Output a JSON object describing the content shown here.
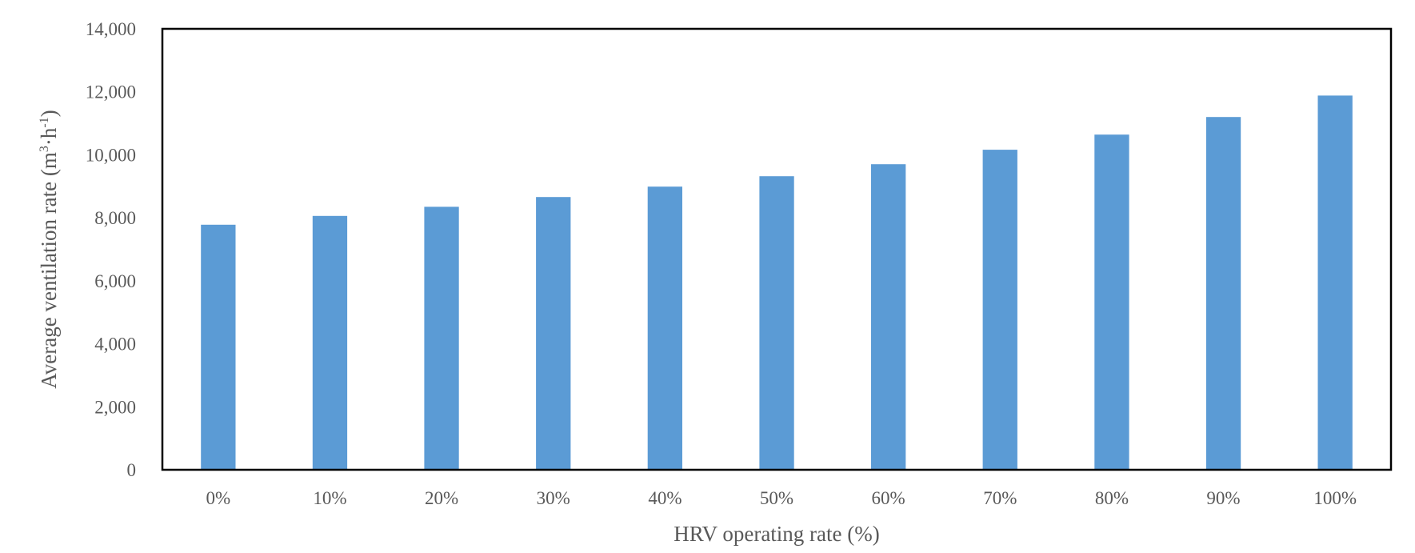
{
  "chart_data": {
    "type": "bar",
    "title": "",
    "xlabel": "HRV operating rate (%)",
    "ylabel": {
      "base": "Average  ventilation rate (m",
      "sup1": "3",
      "mid": "·h",
      "sup2": "-1",
      "end": ")"
    },
    "categories": [
      "0%",
      "10%",
      "20%",
      "30%",
      "40%",
      "50%",
      "60%",
      "70%",
      "80%",
      "90%",
      "100%"
    ],
    "values": [
      7780,
      8060,
      8350,
      8660,
      8990,
      9320,
      9700,
      10160,
      10640,
      11200,
      11880
    ],
    "ylim": [
      0,
      14000
    ],
    "yticks": [
      "0",
      "2,000",
      "4,000",
      "6,000",
      "8,000",
      "10,000",
      "12,000",
      "14,000"
    ],
    "grid": false,
    "legend": "none",
    "bar_color": "#5B9BD5",
    "frame_color": "#000000",
    "text_color": "#595959"
  }
}
